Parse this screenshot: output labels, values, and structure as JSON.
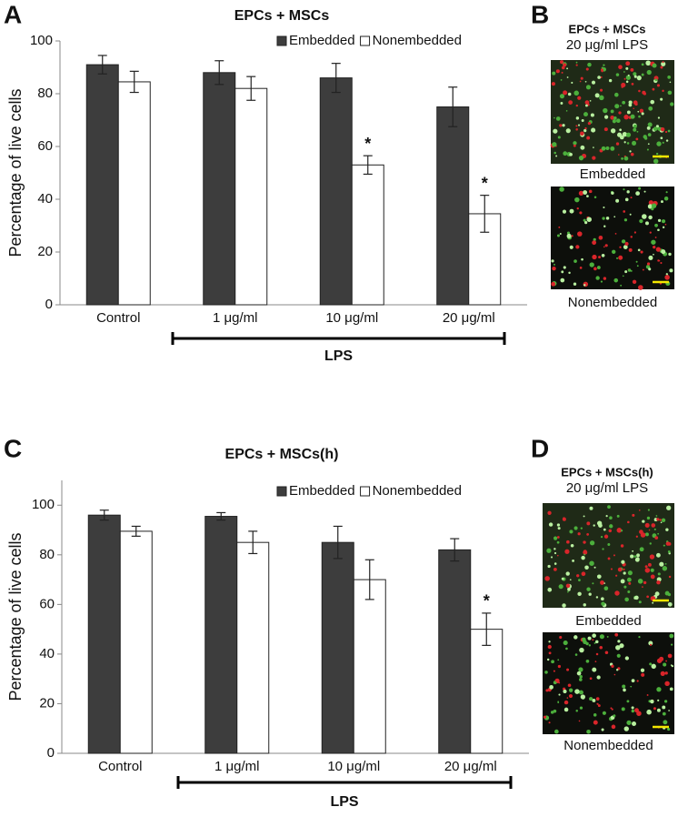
{
  "chart_data": [
    {
      "type": "bar",
      "panel": "A",
      "title": "EPCs + MSCs",
      "ylabel": "Percentage of live cells",
      "categories": [
        "Control",
        "1 μg/ml",
        "10 μg/ml",
        "20 μg/ml"
      ],
      "group_label": "LPS",
      "series": [
        {
          "name": "Embedded",
          "color": "#3d3d3d",
          "values": [
            91,
            88,
            86,
            75
          ],
          "errors": [
            3.5,
            4.5,
            5.5,
            7.5
          ],
          "markers": [
            null,
            null,
            null,
            null
          ]
        },
        {
          "name": "Nonembedded",
          "color": "#ffffff",
          "values": [
            84.5,
            82,
            53,
            34.5
          ],
          "errors": [
            4,
            4.5,
            3.5,
            7
          ],
          "markers": [
            null,
            null,
            "*",
            "*"
          ]
        }
      ],
      "ylim": [
        0,
        100
      ],
      "yticks": [
        0,
        20,
        40,
        60,
        80,
        100
      ],
      "legend": "top-right"
    },
    {
      "type": "bar",
      "panel": "C",
      "title": "EPCs + MSCs(h)",
      "ylabel": "Percentage of live cells",
      "categories": [
        "Control",
        "1 μg/ml",
        "10 μg/ml",
        "20 μg/ml"
      ],
      "group_label": "LPS",
      "series": [
        {
          "name": "Embedded",
          "color": "#3d3d3d",
          "values": [
            96,
            95.5,
            85,
            82
          ],
          "errors": [
            2,
            1.5,
            6.5,
            4.5
          ],
          "markers": [
            null,
            null,
            null,
            null
          ]
        },
        {
          "name": "Nonembedded",
          "color": "#ffffff",
          "values": [
            89.5,
            85,
            70,
            50
          ],
          "errors": [
            2,
            4.5,
            8,
            6.5
          ],
          "markers": [
            null,
            null,
            null,
            "*"
          ]
        }
      ],
      "ylim": [
        0,
        110
      ],
      "yticks": [
        0,
        20,
        40,
        60,
        80,
        100
      ],
      "legend": "top-right"
    }
  ],
  "image_panels": [
    {
      "panel": "B",
      "title": "EPCs + MSCs",
      "subtitle": "20 μg/ml LPS",
      "captions": [
        "Embedded",
        "Nonembedded"
      ]
    },
    {
      "panel": "D",
      "title": "EPCs + MSCs(h)",
      "subtitle": "20 μg/ml LPS",
      "captions": [
        "Embedded",
        "Nonembedded"
      ]
    }
  ]
}
